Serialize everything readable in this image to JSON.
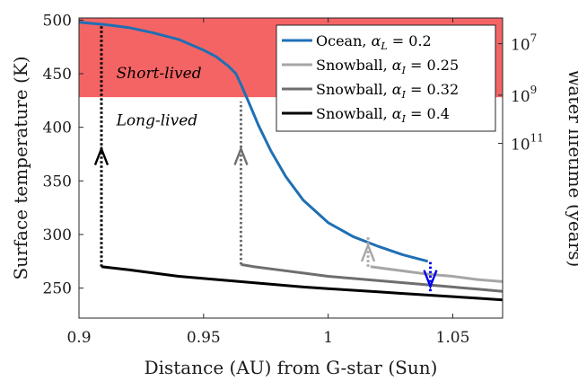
{
  "chart_data": {
    "type": "line",
    "xlabel": "Distance (AU) from G-star (Sun)",
    "ylabel": "Surface temperature (K)",
    "y2label": "Water lifetime (years)",
    "xlim": [
      0.9,
      1.07
    ],
    "ylim": [
      222,
      502
    ],
    "x_ticks": [
      0.9,
      0.95,
      1.0,
      1.05
    ],
    "x_tick_labels": [
      "0.9",
      "0.95",
      "1",
      "1.05"
    ],
    "y_ticks": [
      250,
      300,
      350,
      400,
      450,
      500
    ],
    "y_tick_labels": [
      "250",
      "300",
      "350",
      "400",
      "450",
      "500"
    ],
    "y2_ticks": [
      {
        "temperature": 478,
        "base": "10",
        "exp": "7"
      },
      {
        "temperature": 430,
        "base": "10",
        "exp": "9"
      },
      {
        "temperature": 385,
        "base": "10",
        "exp": "11"
      }
    ],
    "grid": false,
    "legend_position": "top-right",
    "regions": [
      {
        "label": "Short-lived",
        "y_from": 428,
        "y_to": 502,
        "color": "#f46464",
        "label_x": 0.915,
        "label_y": 446
      },
      {
        "label": "Long-lived",
        "y_from": 222,
        "y_to": 428,
        "color": "#ffffff",
        "label_x": 0.915,
        "label_y": 402
      }
    ],
    "series": [
      {
        "legend_prefix": "Ocean, ",
        "legend_var": "α",
        "legend_sub": "L",
        "legend_value": " = 0.2",
        "color": "#1f6fb4",
        "x": [
          0.9,
          0.91,
          0.92,
          0.93,
          0.94,
          0.95,
          0.955,
          0.96,
          0.963,
          0.965,
          0.968,
          0.972,
          0.977,
          0.983,
          0.99,
          1.0,
          1.01,
          1.02,
          1.03,
          1.04
        ],
        "y": [
          498,
          496,
          493,
          488,
          482,
          472,
          466,
          457,
          450,
          440,
          424,
          402,
          378,
          354,
          332,
          311,
          298,
          289,
          281,
          275
        ]
      },
      {
        "legend_prefix": "Snowball, ",
        "legend_var": "α",
        "legend_sub": "I",
        "legend_value": " = 0.25",
        "color": "#a6a6a6",
        "x": [
          1.017,
          1.02,
          1.03,
          1.04,
          1.05,
          1.06,
          1.07
        ],
        "y": [
          270,
          269,
          266,
          263,
          261,
          258,
          256
        ]
      },
      {
        "legend_prefix": "Snowball, ",
        "legend_var": "α",
        "legend_sub": "I",
        "legend_value": " = 0.32",
        "color": "#6e6e6e",
        "x": [
          0.965,
          0.97,
          0.98,
          0.99,
          1.0,
          1.01,
          1.02,
          1.03,
          1.04,
          1.05,
          1.06,
          1.07
        ],
        "y": [
          272,
          270,
          267,
          264,
          261,
          259,
          257,
          255,
          253,
          251,
          249,
          247
        ]
      },
      {
        "legend_prefix": "Snowball, ",
        "legend_var": "α",
        "legend_sub": "I",
        "legend_value": " = 0.4",
        "color": "#000000",
        "x": [
          0.909,
          0.92,
          0.93,
          0.94,
          0.95,
          0.96,
          0.97,
          0.98,
          0.99,
          1.0,
          1.01,
          1.02,
          1.03,
          1.04,
          1.05,
          1.06,
          1.07
        ],
        "y": [
          270,
          267,
          264,
          261,
          259,
          257,
          255,
          253,
          251,
          249.5,
          248,
          246.5,
          245,
          243.5,
          242,
          240.5,
          239
        ]
      }
    ],
    "transitions": [
      {
        "x": 0.909,
        "y_from": 270,
        "y_to": 496,
        "arrow_y": 380,
        "direction": "up",
        "color": "#000000"
      },
      {
        "x": 0.965,
        "y_from": 272,
        "y_to": 424,
        "arrow_y": 380,
        "direction": "up",
        "color": "#6e6e6e"
      },
      {
        "x": 1.016,
        "y_from": 270,
        "y_to": 298,
        "arrow_y": 290,
        "direction": "up",
        "color": "#a6a6a6"
      },
      {
        "x": 1.041,
        "y_from": 247,
        "y_to": 275,
        "arrow_y": 255,
        "direction": "down",
        "color": "#0000ee"
      }
    ]
  }
}
